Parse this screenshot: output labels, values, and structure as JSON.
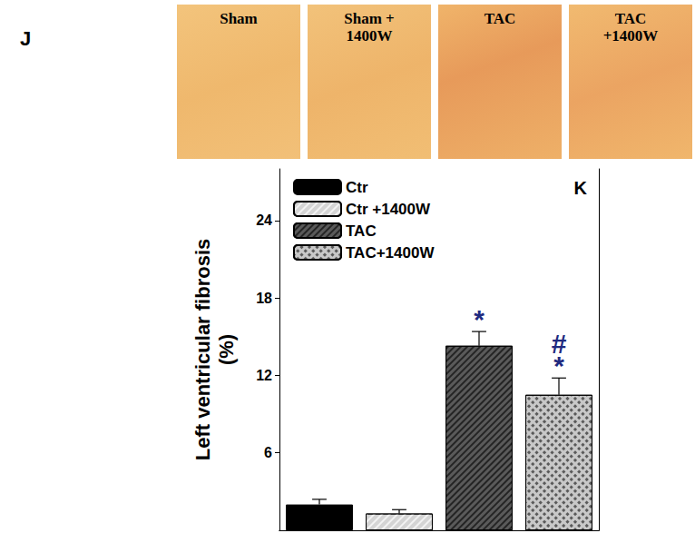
{
  "figure": {
    "label": "J",
    "panels": [
      "Sham",
      "Sham +\n1400W",
      "TAC",
      "TAC\n+1400W"
    ]
  },
  "chart_data": {
    "type": "bar",
    "panel_label": "K",
    "y_label": "Left ventricular fibrosis\n(%)",
    "categories": [
      null
    ],
    "series": [
      {
        "name": "Ctr",
        "color": "#000000",
        "values": [
          2.0
        ],
        "errors": [
          0.4
        ],
        "annotation": null
      },
      {
        "name": "Ctr +1400W",
        "color": "#d4d4d4",
        "values": [
          1.3
        ],
        "errors": [
          0.3
        ],
        "annotation": null
      },
      {
        "name": "TAC",
        "color": "#5a5a5a",
        "values": [
          14.3
        ],
        "errors": [
          1.1
        ],
        "annotation": "*"
      },
      {
        "name": "TAC+1400W",
        "color": "#c8c8c8",
        "values": [
          10.5
        ],
        "errors": [
          1.3
        ],
        "annotation": "#\n*"
      }
    ],
    "ylim": [
      0,
      28
    ],
    "yticks": [
      6,
      12,
      18,
      24
    ],
    "grid": false,
    "legend": "upper left",
    "tick_labels": "y"
  }
}
